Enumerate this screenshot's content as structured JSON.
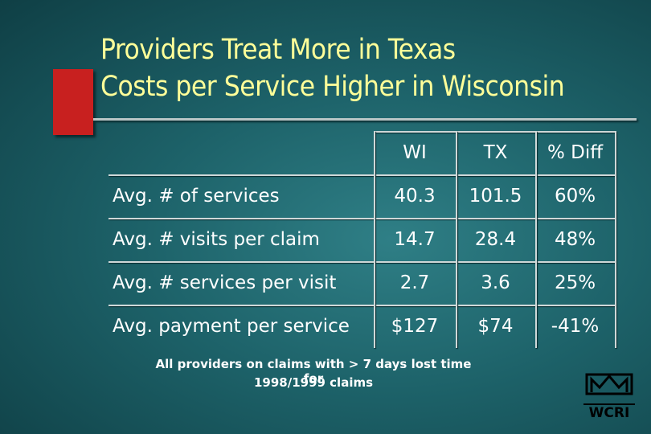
{
  "header": {
    "title": [
      "Providers Treat More in Texas",
      "Costs per Service Higher in Wisconsin"
    ]
  },
  "table": {
    "columns": [
      "WI",
      "TX",
      "% Diff"
    ],
    "rows": [
      [
        "Avg. # of services",
        "40.3",
        "101.5",
        "60%"
      ],
      [
        "Avg. # visits per claim",
        "14.7",
        "28.4",
        "48%"
      ],
      [
        "Avg. # services per visit",
        "2.7",
        "3.6",
        "25%"
      ],
      [
        "Avg. payment per service",
        "$127",
        "$74",
        "-41%"
      ]
    ]
  },
  "footnote": [
    "All providers on claims with > 7 days lost time for",
    "1998/1999 claims"
  ],
  "logo": {
    "label": "WCRI"
  }
}
